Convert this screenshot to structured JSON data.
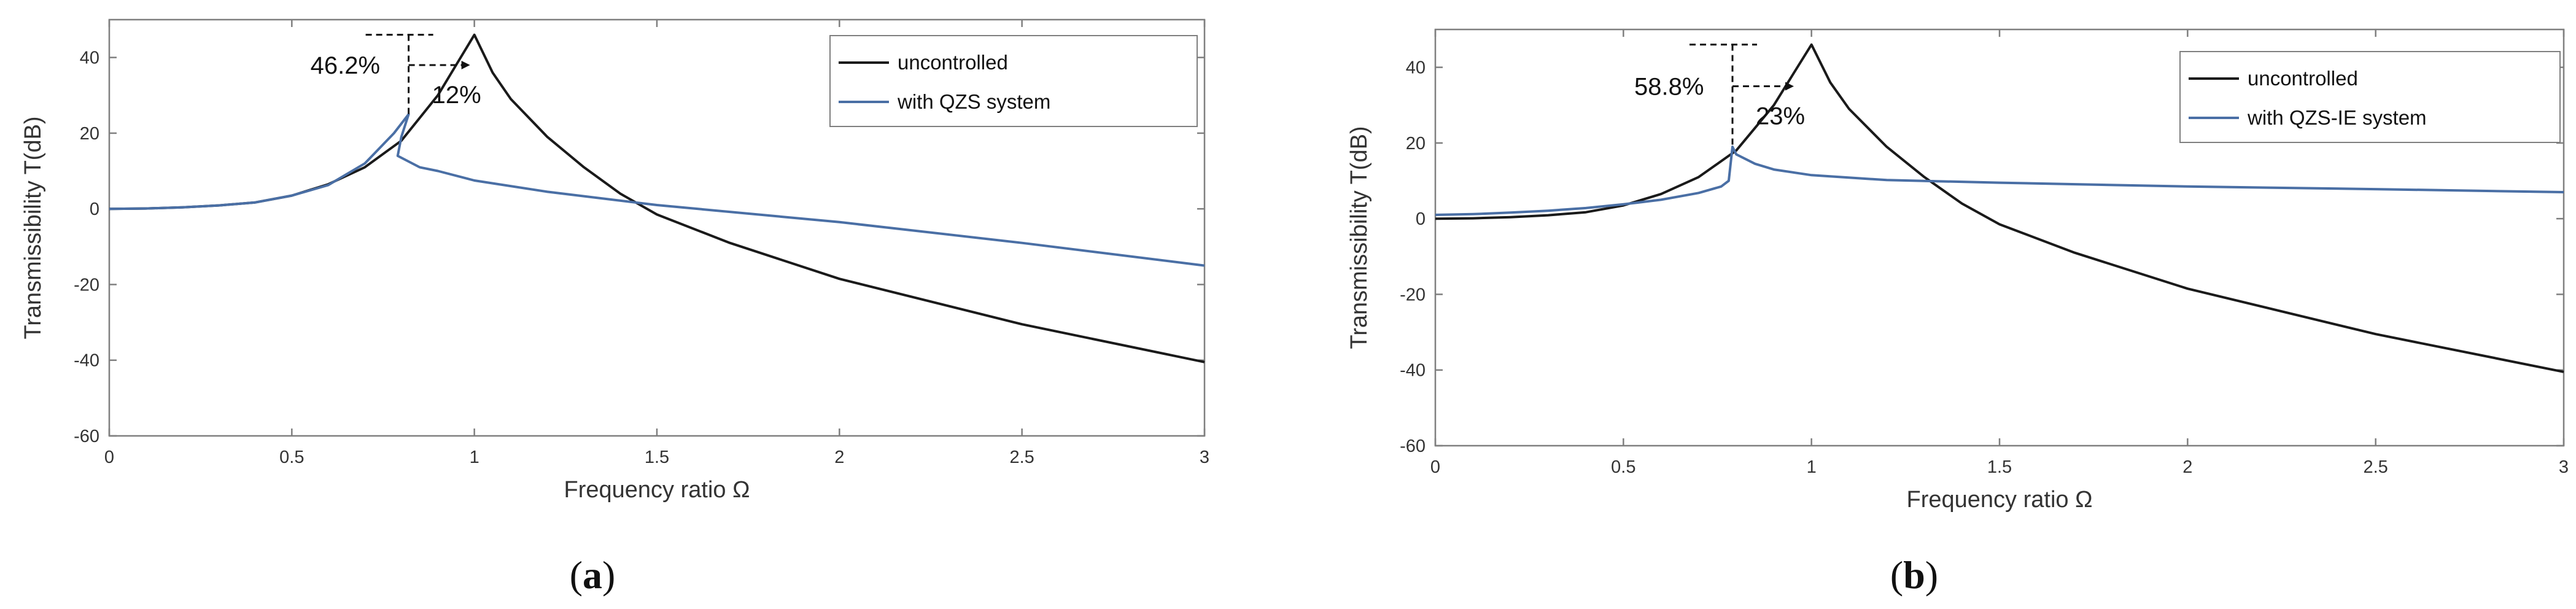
{
  "colors": {
    "uncontrolled": "#1a1a1a",
    "controlled": "#4a6fa5"
  },
  "chart_data": [
    {
      "type": "line",
      "panel": "(a)",
      "xlabel": "Frequency ratio  Ω",
      "ylabel": "Transmissibility T(dB)",
      "xlim": [
        0,
        3
      ],
      "ylim": [
        -60,
        50
      ],
      "xticks": [
        0,
        0.5,
        1,
        1.5,
        2,
        2.5,
        3
      ],
      "xtick_labels": [
        "0",
        "0.5",
        "1",
        "1.5",
        "2",
        "2.5",
        "3"
      ],
      "yticks": [
        -60,
        -40,
        -20,
        0,
        20,
        40
      ],
      "ytick_labels": [
        "-60",
        "-40",
        "-20",
        "0",
        "20",
        "40"
      ],
      "legend": [
        "uncontrolled",
        "with QZS system"
      ],
      "legend_position": "top-right",
      "annotations": [
        {
          "text": "46.2%",
          "x": 1.0,
          "y": 46
        },
        {
          "text": "12%",
          "x": 0.82,
          "y": 36
        }
      ],
      "series": [
        {
          "name": "uncontrolled",
          "x": [
            0,
            0.1,
            0.2,
            0.3,
            0.4,
            0.5,
            0.6,
            0.7,
            0.8,
            0.85,
            0.9,
            0.95,
            1.0,
            1.05,
            1.1,
            1.2,
            1.3,
            1.4,
            1.5,
            1.7,
            2.0,
            2.5,
            3.0
          ],
          "values": [
            0,
            0.1,
            0.4,
            0.9,
            1.7,
            3.5,
            6.5,
            11,
            18,
            24,
            30,
            38,
            46,
            36,
            29,
            19,
            11,
            4,
            -1.5,
            -9,
            -18.5,
            -30.5,
            -40.5
          ]
        },
        {
          "name": "with QZS system",
          "x": [
            0,
            0.1,
            0.2,
            0.3,
            0.4,
            0.5,
            0.6,
            0.7,
            0.78,
            0.82,
            0.8,
            0.79,
            0.85,
            0.9,
            1.0,
            1.2,
            1.5,
            2.0,
            2.5,
            3.0
          ],
          "values": [
            0,
            0.1,
            0.4,
            0.9,
            1.7,
            3.5,
            6.3,
            12,
            20,
            25,
            19,
            14,
            11,
            10,
            7.5,
            4.5,
            1,
            -3.5,
            -9,
            -15
          ]
        }
      ]
    },
    {
      "type": "line",
      "panel": "(b)",
      "xlabel": "Frequency ratio  Ω",
      "ylabel": "Transmissibility T(dB)",
      "xlim": [
        0,
        3
      ],
      "ylim": [
        -60,
        50
      ],
      "xticks": [
        0,
        0.5,
        1,
        1.5,
        2,
        2.5,
        3
      ],
      "xtick_labels": [
        "0",
        "0.5",
        "1",
        "1.5",
        "2",
        "2.5",
        "3"
      ],
      "yticks": [
        -60,
        -40,
        -20,
        0,
        20,
        40
      ],
      "ytick_labels": [
        "-60",
        "-40",
        "-20",
        "0",
        "20",
        "40"
      ],
      "legend": [
        "uncontrolled",
        "with QZS-IE system"
      ],
      "legend_position": "top-right",
      "annotations": [
        {
          "text": "58.8%",
          "x": 1.0,
          "y": 46
        },
        {
          "text": "23%",
          "x": 0.79,
          "y": 33
        }
      ],
      "series": [
        {
          "name": "uncontrolled",
          "x": [
            0,
            0.1,
            0.2,
            0.3,
            0.4,
            0.5,
            0.6,
            0.7,
            0.8,
            0.85,
            0.9,
            0.95,
            1.0,
            1.05,
            1.1,
            1.2,
            1.3,
            1.4,
            1.5,
            1.7,
            2.0,
            2.5,
            3.0
          ],
          "values": [
            0,
            0.1,
            0.4,
            0.9,
            1.7,
            3.5,
            6.5,
            11,
            18,
            24,
            30,
            38,
            46,
            36,
            29,
            19,
            11,
            4,
            -1.5,
            -9,
            -18.5,
            -30.5,
            -40.5
          ]
        },
        {
          "name": "with QZS-IE system",
          "x": [
            0,
            0.1,
            0.2,
            0.3,
            0.4,
            0.5,
            0.6,
            0.7,
            0.76,
            0.78,
            0.79,
            0.8,
            0.85,
            0.9,
            1.0,
            1.2,
            1.5,
            2.0,
            2.5,
            3.0
          ],
          "values": [
            1,
            1.2,
            1.6,
            2.1,
            2.8,
            3.8,
            5,
            6.8,
            8.5,
            10,
            19,
            17,
            14.5,
            13,
            11.5,
            10.2,
            9.5,
            8.5,
            7.8,
            7
          ]
        }
      ]
    }
  ],
  "captions": [
    {
      "open": "(",
      "letter": "a",
      "close": ")"
    },
    {
      "open": "(",
      "letter": "b",
      "close": ")"
    }
  ]
}
